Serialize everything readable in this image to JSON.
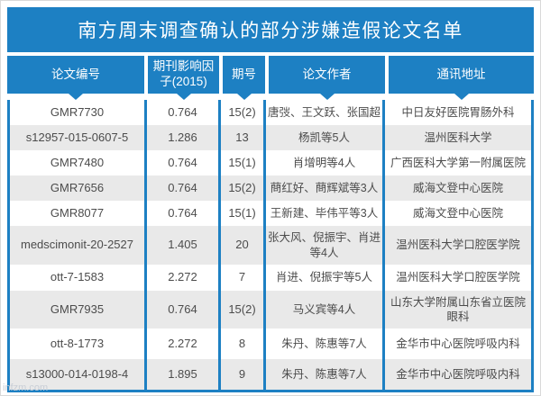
{
  "title": "南方周末调查确认的部分涉嫌造假论文名单",
  "watermark": "infzm.com",
  "colors": {
    "accent": "#1d80c3",
    "row_alt": "#e9e9e9",
    "text": "#4c4c4c"
  },
  "chart_data": {
    "type": "table",
    "title": "南方周末调查确认的部分涉嫌造假论文名单",
    "columns": [
      "论文编号",
      "期刊影响因子(2015)",
      "期号",
      "论文作者",
      "通讯地址"
    ],
    "rows": [
      {
        "paper_id": "GMR7730",
        "impact_factor": "0.764",
        "issue": "15(2)",
        "authors": "唐弢、王文跃、张国超",
        "address": "中日友好医院胃肠外科"
      },
      {
        "paper_id": "s12957-015-0607-5",
        "impact_factor": "1.286",
        "issue": "13",
        "authors": "杨凯等5人",
        "address": "温州医科大学"
      },
      {
        "paper_id": "GMR7480",
        "impact_factor": "0.764",
        "issue": "15(1)",
        "authors": "肖增明等4人",
        "address": "广西医科大学第一附属医院"
      },
      {
        "paper_id": "GMR7656",
        "impact_factor": "0.764",
        "issue": "15(2)",
        "authors": "蔄红好、蔄辉斌等3人",
        "address": "威海文登中心医院"
      },
      {
        "paper_id": "GMR8077",
        "impact_factor": "0.764",
        "issue": "15(1)",
        "authors": "王新建、毕伟平等3人",
        "address": "威海文登中心医院"
      },
      {
        "paper_id": "medscimonit-20-2527",
        "impact_factor": "1.405",
        "issue": "20",
        "authors": "张大风、倪振宇、肖进等4人",
        "address": "温州医科大学口腔医学院"
      },
      {
        "paper_id": "ott-7-1583",
        "impact_factor": "2.272",
        "issue": "7",
        "authors": "肖进、倪振宇等5人",
        "address": "温州医科大学口腔医学院"
      },
      {
        "paper_id": "GMR7935",
        "impact_factor": "0.764",
        "issue": "15(2)",
        "authors": "马义宾等4人",
        "address": "山东大学附属山东省立医院眼科"
      },
      {
        "paper_id": "ott-8-1773",
        "impact_factor": "2.272",
        "issue": "8",
        "authors": "朱丹、陈惠等7人",
        "address": "金华市中心医院呼吸内科"
      },
      {
        "paper_id": "s13000-014-0198-4",
        "impact_factor": "1.895",
        "issue": "9",
        "authors": "朱丹、陈惠等7人",
        "address": "金华市中心医院呼吸内科"
      }
    ]
  }
}
